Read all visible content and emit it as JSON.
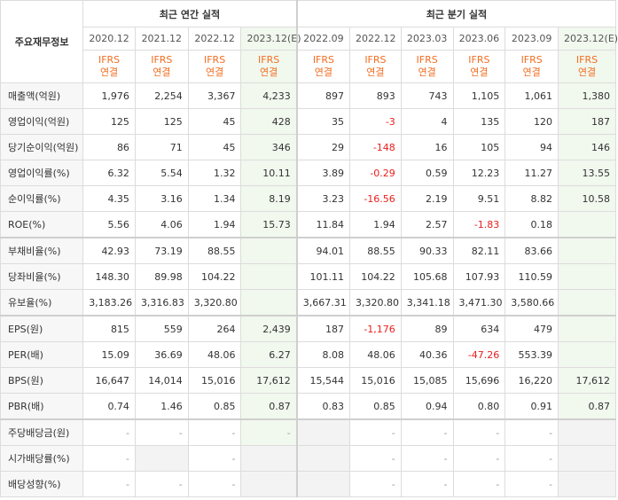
{
  "header": {
    "row_label": "주요재무정보",
    "annual_title": "최근 연간 실적",
    "quarter_title": "최근 분기 실적"
  },
  "periods": [
    "2020.12",
    "2021.12",
    "2022.12",
    "2023.12(E)",
    "2022.09",
    "2022.12",
    "2023.03",
    "2023.06",
    "2023.09",
    "2023.12(E)"
  ],
  "ifrs": {
    "line1": "IFRS",
    "line2": "연결"
  },
  "rows": [
    {
      "label": "매출액(억원)",
      "values": [
        "1,976",
        "2,254",
        "3,367",
        "4,233",
        "897",
        "893",
        "743",
        "1,105",
        "1,061",
        "1,380"
      ]
    },
    {
      "label": "영업이익(억원)",
      "values": [
        "125",
        "125",
        "45",
        "428",
        "35",
        "-3",
        "4",
        "135",
        "120",
        "187"
      ]
    },
    {
      "label": "당기순이익(억원)",
      "values": [
        "86",
        "71",
        "45",
        "346",
        "29",
        "-148",
        "16",
        "105",
        "94",
        "146"
      ]
    },
    {
      "label": "영업이익률(%)",
      "values": [
        "6.32",
        "5.54",
        "1.32",
        "10.11",
        "3.89",
        "-0.29",
        "0.59",
        "12.23",
        "11.27",
        "13.55"
      ]
    },
    {
      "label": "순이익률(%)",
      "values": [
        "4.35",
        "3.16",
        "1.34",
        "8.19",
        "3.23",
        "-16.56",
        "2.19",
        "9.51",
        "8.82",
        "10.58"
      ]
    },
    {
      "label": "ROE(%)",
      "values": [
        "5.56",
        "4.06",
        "1.94",
        "15.73",
        "11.84",
        "1.94",
        "2.57",
        "-1.83",
        "0.18",
        ""
      ]
    },
    {
      "label": "부채비율(%)",
      "values": [
        "42.93",
        "73.19",
        "88.55",
        "",
        "94.01",
        "88.55",
        "90.33",
        "82.11",
        "83.66",
        ""
      ]
    },
    {
      "label": "당좌비율(%)",
      "values": [
        "148.30",
        "89.98",
        "104.22",
        "",
        "101.11",
        "104.22",
        "105.68",
        "107.93",
        "110.59",
        ""
      ]
    },
    {
      "label": "유보율(%)",
      "values": [
        "3,183.26",
        "3,316.83",
        "3,320.80",
        "",
        "3,667.31",
        "3,320.80",
        "3,341.18",
        "3,471.30",
        "3,580.66",
        ""
      ]
    },
    {
      "label": "EPS(원)",
      "values": [
        "815",
        "559",
        "264",
        "2,439",
        "187",
        "-1,176",
        "89",
        "634",
        "479",
        ""
      ]
    },
    {
      "label": "PER(배)",
      "values": [
        "15.09",
        "36.69",
        "48.06",
        "6.27",
        "8.08",
        "48.06",
        "40.36",
        "-47.26",
        "553.39",
        ""
      ]
    },
    {
      "label": "BPS(원)",
      "values": [
        "16,647",
        "14,014",
        "15,016",
        "17,612",
        "15,544",
        "15,016",
        "15,085",
        "15,696",
        "16,220",
        "17,612"
      ]
    },
    {
      "label": "PBR(배)",
      "values": [
        "0.74",
        "1.46",
        "0.85",
        "0.87",
        "0.83",
        "0.85",
        "0.94",
        "0.80",
        "0.91",
        "0.87"
      ]
    },
    {
      "label": "주당배당금(원)",
      "values": [
        "-",
        "-",
        "-",
        "-",
        "",
        "-",
        "-",
        "-",
        "-",
        ""
      ]
    },
    {
      "label": "시가배당률(%)",
      "values": [
        "-",
        "",
        "-",
        "",
        "",
        "-",
        "-",
        "-",
        "-",
        ""
      ]
    },
    {
      "label": "배당성향(%)",
      "values": [
        "-",
        "-",
        "-",
        "",
        "",
        "-",
        "-",
        "-",
        "-",
        ""
      ]
    }
  ]
}
